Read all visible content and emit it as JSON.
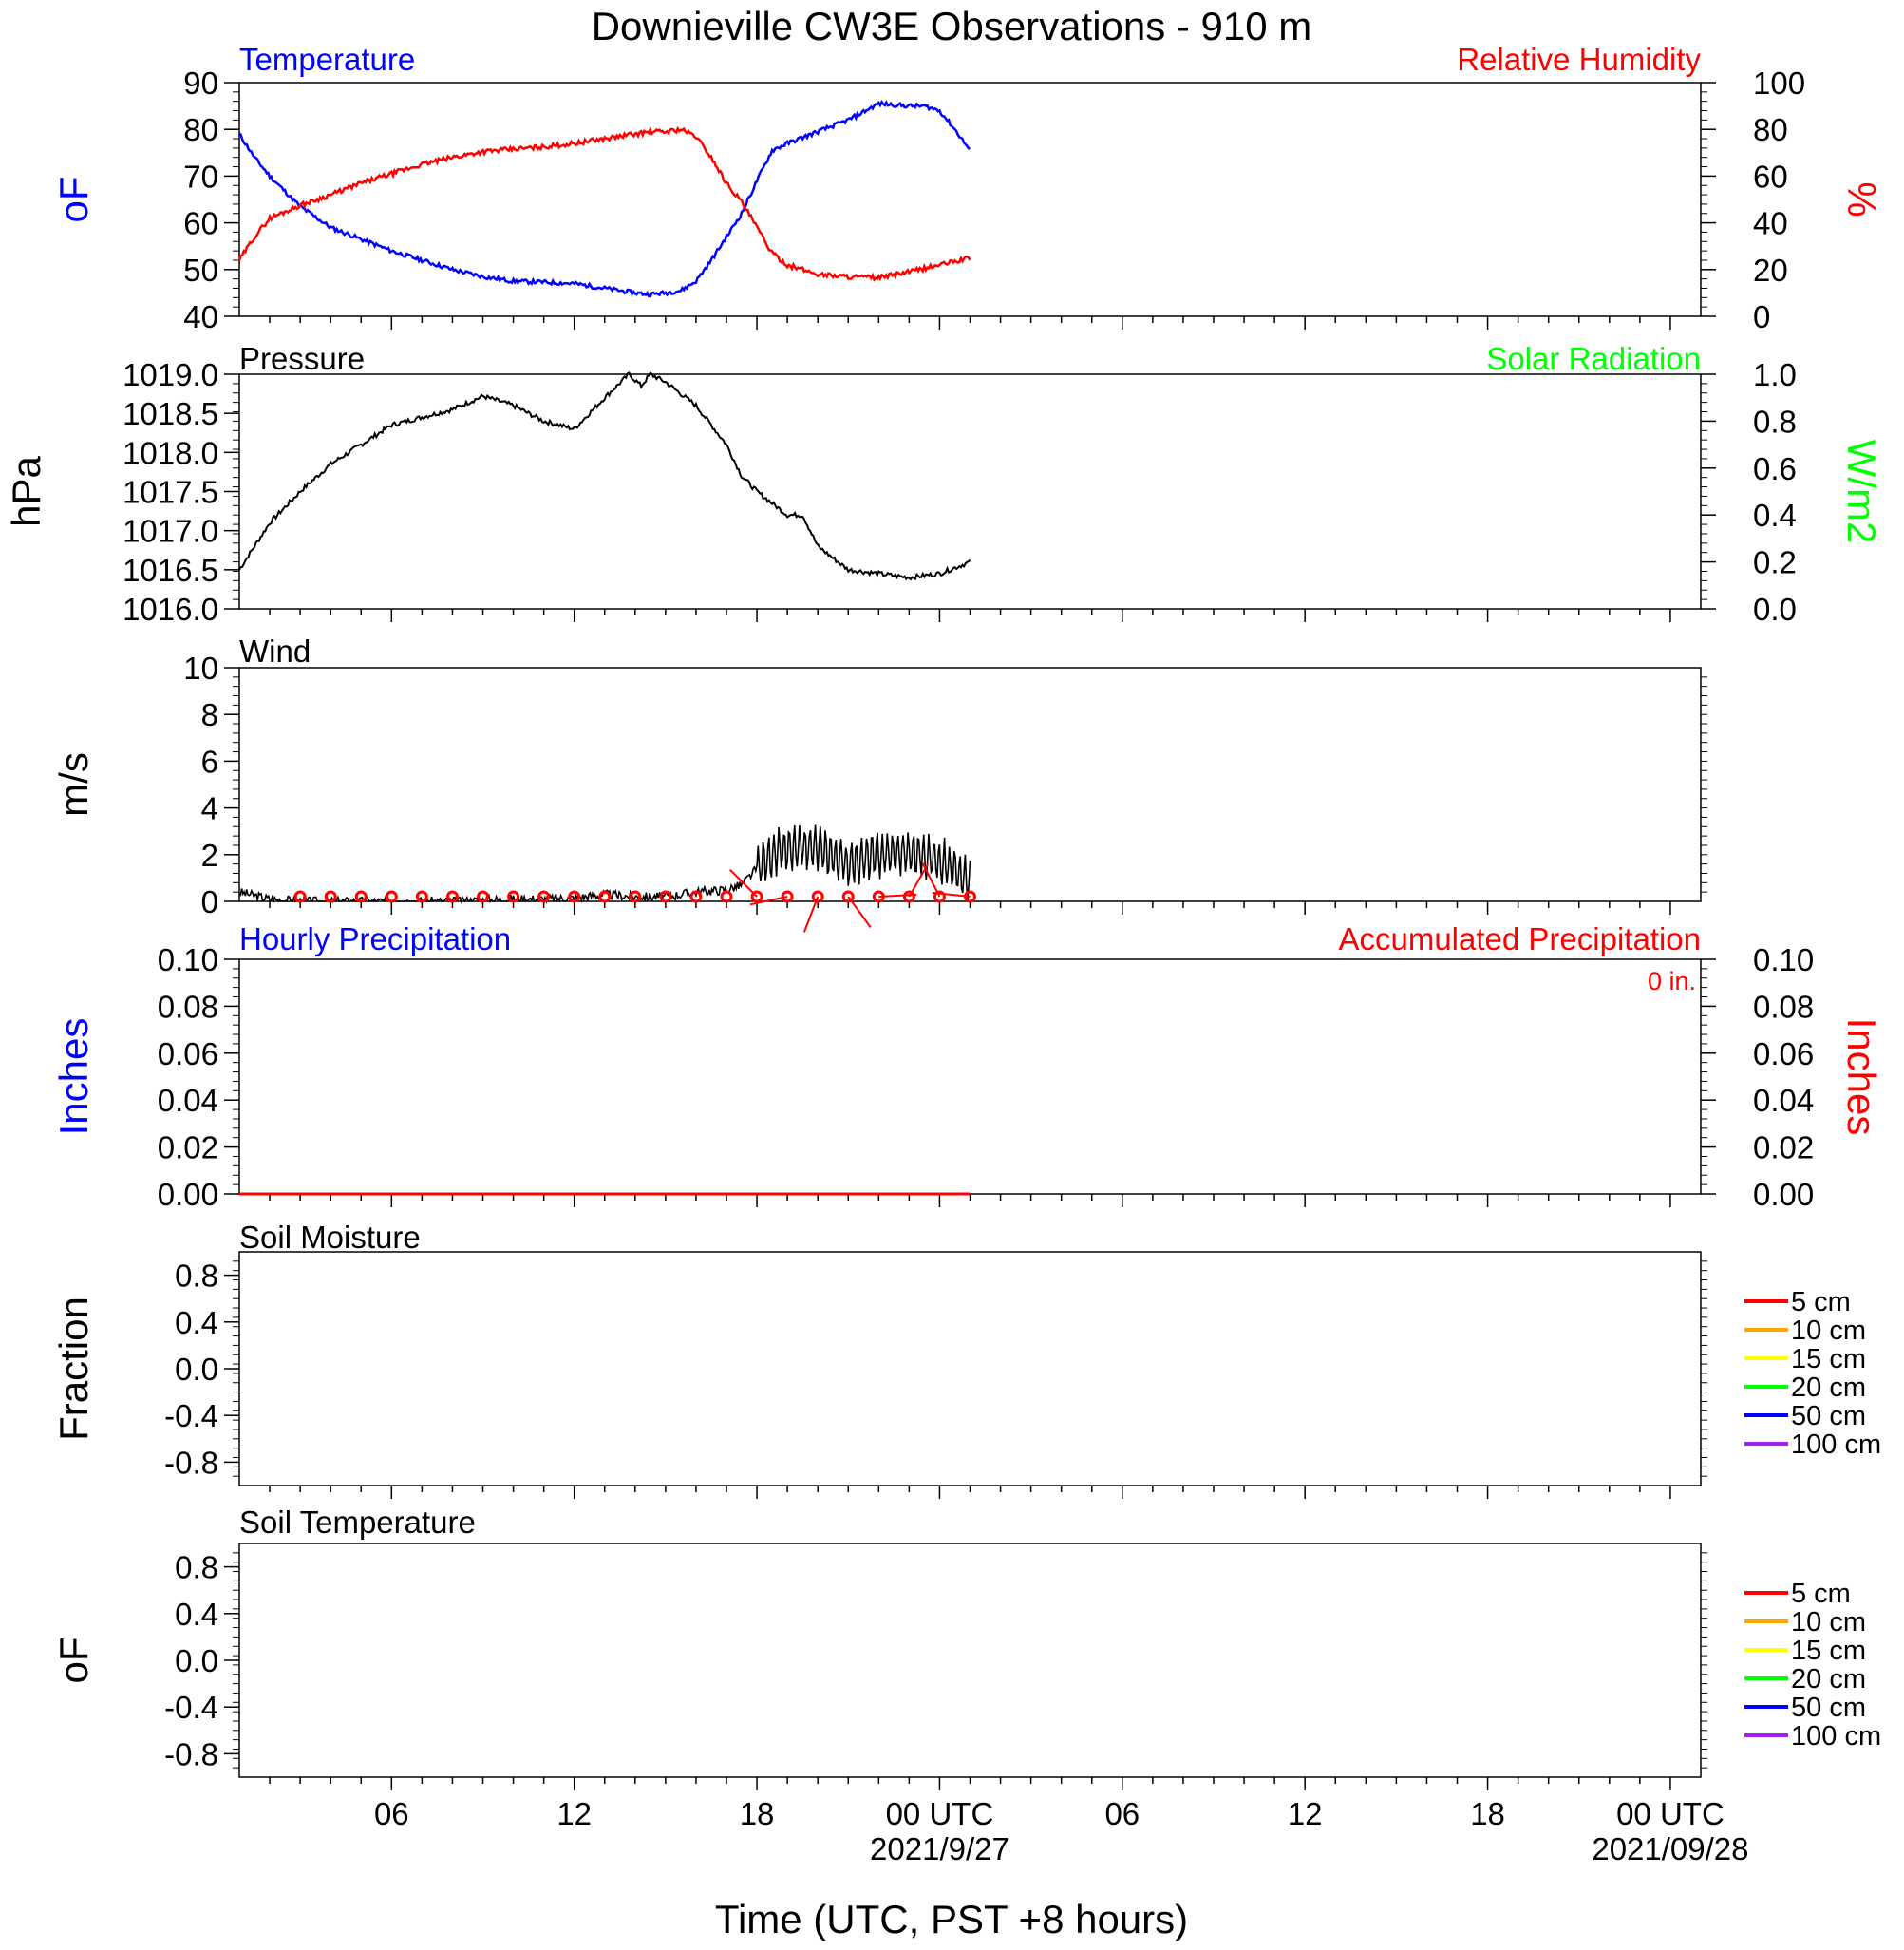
{
  "title": "Downieville CW3E Observations - 910 m",
  "x_axis": {
    "label": "Time (UTC, PST +8 hours)",
    "ticks": [
      {
        "h": 6,
        "label": "06"
      },
      {
        "h": 12,
        "label": "12"
      },
      {
        "h": 18,
        "label": "18"
      },
      {
        "h": 24,
        "label": "00 UTC"
      },
      {
        "h": 30,
        "label": "06"
      },
      {
        "h": 36,
        "label": "12"
      },
      {
        "h": 42,
        "label": "18"
      },
      {
        "h": 48,
        "label": "00 UTC"
      }
    ],
    "date_labels": [
      {
        "h": 24,
        "label": "2021/9/27"
      },
      {
        "h": 48,
        "label": "2021/09/28"
      }
    ],
    "range_hours": [
      1,
      49
    ]
  },
  "colors": {
    "temperature": "#0000ff",
    "humidity": "#ff0000",
    "pressure": "#000000",
    "solar": "#00ff00",
    "wind": "#000000",
    "barb": "#ff0000",
    "hourly_precip": "#0000ff",
    "accum_precip": "#ff0000"
  },
  "panels": {
    "temp_rh": {
      "left_title": "Temperature",
      "right_title": "Relative Humidity",
      "left_unit": "oF",
      "right_unit": "%",
      "left_ticks": [
        "40",
        "50",
        "60",
        "70",
        "80",
        "90"
      ],
      "right_ticks": [
        "0",
        "20",
        "40",
        "60",
        "80",
        "100"
      ]
    },
    "pressure": {
      "left_title": "Pressure",
      "right_title": "Solar Radiation",
      "left_unit": "hPa",
      "right_unit": "W/m2",
      "left_ticks": [
        "1016.0",
        "1016.5",
        "1017.0",
        "1017.5",
        "1018.0",
        "1018.5",
        "1019.0"
      ],
      "right_ticks": [
        "0.0",
        "0.2",
        "0.4",
        "0.6",
        "0.8",
        "1.0"
      ]
    },
    "wind": {
      "left_title": "Wind",
      "left_unit": "m/s",
      "left_ticks": [
        "0",
        "2",
        "4",
        "6",
        "8",
        "10"
      ]
    },
    "precip": {
      "left_title": "Hourly Precipitation",
      "right_title": "Accumulated Precipitation",
      "left_unit": "Inches",
      "right_unit": "Inches",
      "total_label": "0 in.",
      "left_ticks": [
        "0.00",
        "0.02",
        "0.04",
        "0.06",
        "0.08",
        "0.10"
      ],
      "right_ticks": [
        "0.00",
        "0.02",
        "0.04",
        "0.06",
        "0.08",
        "0.10"
      ]
    },
    "soil_moisture": {
      "left_title": "Soil Moisture",
      "left_unit": "Fraction",
      "left_ticks": [
        "-0.8",
        "-0.4",
        "0.0",
        "0.4",
        "0.8"
      ],
      "legend": [
        {
          "label": "5 cm",
          "color": "#ff0000"
        },
        {
          "label": "10 cm",
          "color": "#ffa500"
        },
        {
          "label": "15 cm",
          "color": "#ffff00"
        },
        {
          "label": "20 cm",
          "color": "#00ff00"
        },
        {
          "label": "50 cm",
          "color": "#0000ff"
        },
        {
          "label": "100 cm",
          "color": "#a020f0"
        }
      ]
    },
    "soil_temp": {
      "left_title": "Soil Temperature",
      "left_unit": "oF",
      "left_ticks": [
        "-0.8",
        "-0.4",
        "0.0",
        "0.4",
        "0.8"
      ],
      "legend": [
        {
          "label": "5 cm",
          "color": "#ff0000"
        },
        {
          "label": "10 cm",
          "color": "#ffa500"
        },
        {
          "label": "15 cm",
          "color": "#ffff00"
        },
        {
          "label": "20 cm",
          "color": "#00ff00"
        },
        {
          "label": "50 cm",
          "color": "#0000ff"
        },
        {
          "label": "100 cm",
          "color": "#a020f0"
        }
      ]
    }
  },
  "chart_data": [
    {
      "type": "line",
      "title": "Temperature",
      "ylabel": "oF",
      "ylim": [
        40,
        90
      ],
      "x_unit": "hours UTC from 2021-09-26 00:00",
      "x": [
        1,
        1.5,
        2,
        3,
        4,
        5,
        6,
        7,
        8,
        9,
        10,
        11,
        12,
        13,
        14,
        14.5,
        15,
        15.5,
        16,
        16.5,
        17,
        17.5,
        18,
        18.5,
        19,
        20,
        21,
        22,
        23,
        23.5,
        24,
        24.5,
        25
      ],
      "series": [
        {
          "name": "Temperature",
          "values": [
            79,
            74,
            70,
            63.5,
            59,
            56.5,
            54,
            52,
            50,
            48.5,
            47.5,
            47.3,
            47,
            46,
            45,
            44.7,
            45,
            45.5,
            47.5,
            52,
            57,
            62,
            69,
            75.5,
            77,
            79.5,
            82,
            85.5,
            85,
            85,
            84,
            80,
            75.5
          ]
        }
      ]
    },
    {
      "type": "line",
      "title": "Relative Humidity",
      "ylabel": "%",
      "ylim": [
        0,
        100
      ],
      "x": [
        1,
        1.5,
        2,
        3,
        4,
        5,
        6,
        7,
        8,
        9,
        10,
        11,
        12,
        13,
        14,
        14.5,
        15,
        15.5,
        16,
        16.5,
        17,
        17.5,
        18,
        18.5,
        19,
        20,
        21,
        22,
        23,
        24,
        25
      ],
      "series": [
        {
          "name": "Relative Humidity",
          "values": [
            24,
            34,
            42,
            47.5,
            52,
            57,
            61,
            65,
            68,
            70.5,
            71.5,
            72.5,
            74,
            76,
            78,
            79,
            79,
            80,
            77,
            68,
            57,
            49,
            38,
            27,
            22,
            18,
            17,
            16.5,
            19,
            22,
            25
          ]
        }
      ]
    },
    {
      "type": "line",
      "title": "Pressure",
      "ylabel": "hPa",
      "ylim": [
        1016.0,
        1019.0
      ],
      "x": [
        1,
        2,
        3,
        4,
        5,
        6,
        7,
        8,
        9,
        10,
        11,
        12,
        13,
        13.8,
        14.2,
        14.5,
        15,
        16,
        17,
        17.5,
        18,
        19,
        19.5,
        20,
        21,
        22,
        23,
        24,
        25
      ],
      "series": [
        {
          "name": "Pressure",
          "values": [
            1016.5,
            1017.1,
            1017.5,
            1017.85,
            1018.1,
            1018.35,
            1018.45,
            1018.55,
            1018.72,
            1018.6,
            1018.4,
            1018.3,
            1018.7,
            1019.0,
            1018.85,
            1019.0,
            1018.9,
            1018.6,
            1018.1,
            1017.7,
            1017.5,
            1017.2,
            1017.2,
            1016.8,
            1016.5,
            1016.45,
            1016.4,
            1016.45,
            1016.6
          ]
        }
      ]
    },
    {
      "type": "line",
      "title": "Wind",
      "ylabel": "m/s",
      "ylim": [
        0,
        10
      ],
      "x": [
        1,
        2,
        3,
        4,
        5,
        6,
        7,
        8,
        9,
        10,
        11,
        12,
        13,
        14,
        15,
        16,
        17,
        17.5,
        18,
        18.5,
        19,
        20,
        21,
        22,
        23,
        24,
        25
      ],
      "series": [
        {
          "name": "Wind",
          "values": [
            0.4,
            0.1,
            0,
            0,
            0,
            0,
            0,
            0,
            0.05,
            0.1,
            0.1,
            0.15,
            0.3,
            0.2,
            0.2,
            0.4,
            0.5,
            0.7,
            1.4,
            2.0,
            2.2,
            2.3,
            1.6,
            2.0,
            2.1,
            1.8,
            0.8
          ]
        }
      ],
      "barb_hours": [
        3,
        4,
        5,
        6,
        7,
        8,
        9,
        10,
        11,
        12,
        13,
        14,
        15,
        16,
        17,
        18,
        19,
        20,
        21,
        22,
        23,
        24,
        25
      ]
    },
    {
      "type": "line",
      "title": "Hourly Precipitation",
      "ylabel": "Inches",
      "ylim": [
        0,
        0.1
      ],
      "x": [
        1,
        25
      ],
      "series": [
        {
          "name": "Accumulated Precipitation",
          "values": [
            0,
            0
          ]
        }
      ]
    },
    {
      "type": "line",
      "title": "Soil Moisture",
      "ylabel": "Fraction",
      "ylim": [
        -1,
        1
      ],
      "series": []
    },
    {
      "type": "line",
      "title": "Soil Temperature",
      "ylabel": "oF",
      "ylim": [
        -1,
        1
      ],
      "series": []
    }
  ]
}
